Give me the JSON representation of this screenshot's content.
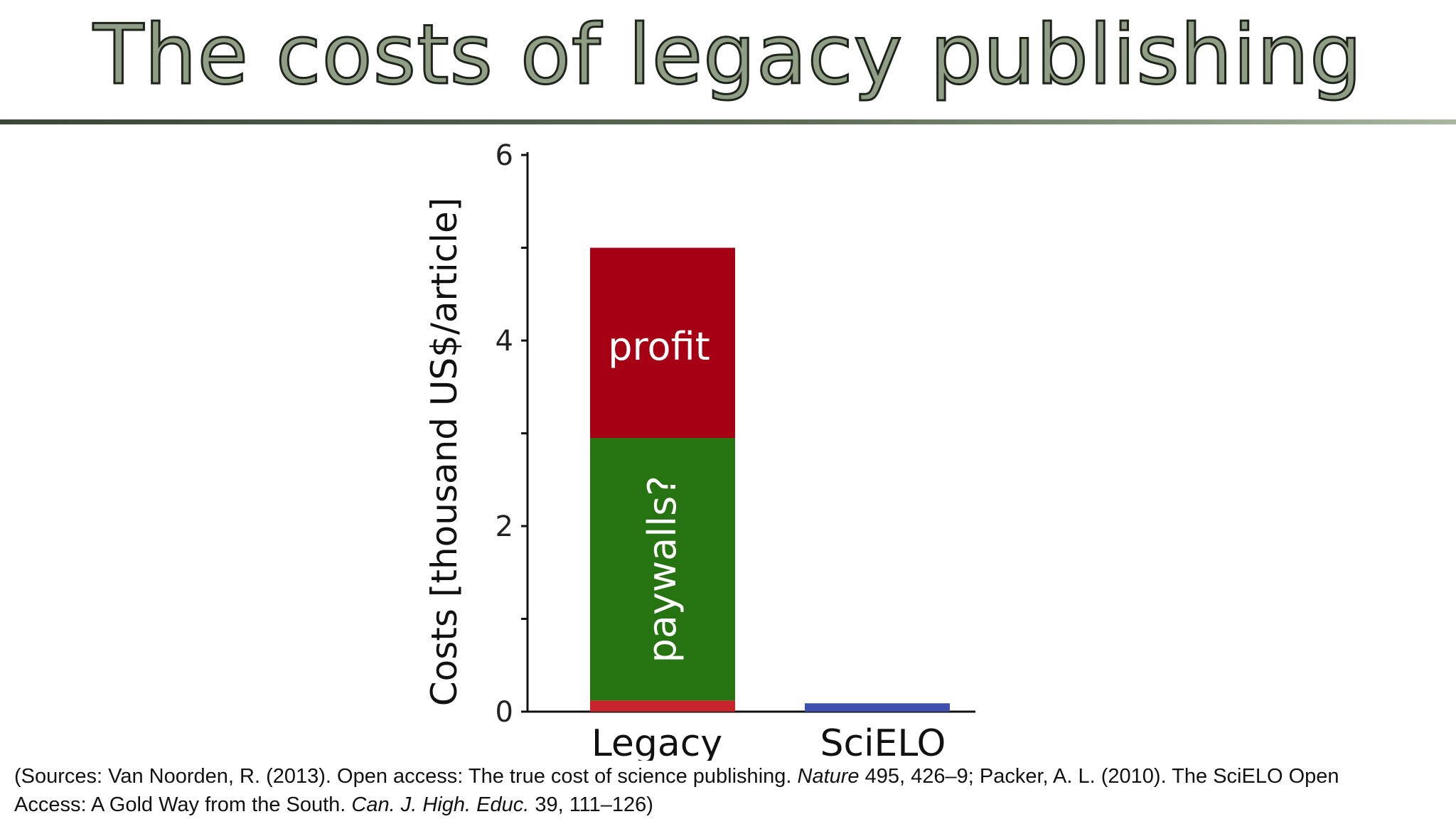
{
  "slide": {
    "title": "The costs of legacy publishing"
  },
  "colors": {
    "profit": "#a50014",
    "paywalls": "#267311",
    "base": "#c8242c",
    "scielo": "#3f4fae",
    "title_fill": "#8f9e85",
    "title_outline": "#1e241c"
  },
  "chart_data": {
    "type": "bar",
    "stacked": true,
    "categories": [
      "Legacy",
      "SciELO"
    ],
    "ylabel": "Costs [thousand US$/article]",
    "xlabel": "",
    "ylim": [
      0,
      6
    ],
    "yticks": [
      0,
      2,
      4,
      6
    ],
    "minor_yticks": [
      1,
      3,
      5
    ],
    "grid": false,
    "series": [
      {
        "key": "base",
        "values": [
          0.12,
          0
        ],
        "color": "#c8242c",
        "label": ""
      },
      {
        "key": "paywalls",
        "values": [
          2.83,
          0
        ],
        "color": "#267311",
        "label": "paywalls?"
      },
      {
        "key": "profit",
        "values": [
          2.05,
          0
        ],
        "color": "#a50014",
        "label": "profit"
      },
      {
        "key": "scielo",
        "values": [
          0,
          0.09
        ],
        "color": "#3f4fae",
        "label": ""
      }
    ]
  },
  "citation": {
    "line1_pre": "(Sources: Van Noorden, R. (2013). Open access: The true cost of science publishing. ",
    "line1_journal": "Nature",
    "line1_post": " 495, 426–9; Packer, A. L. (2010). The SciELO Open",
    "line2_pre": "Access: A Gold Way  from the South. ",
    "line2_journal": "Can. J. High. Educ.",
    "line2_post": " 39, 111–126)"
  }
}
